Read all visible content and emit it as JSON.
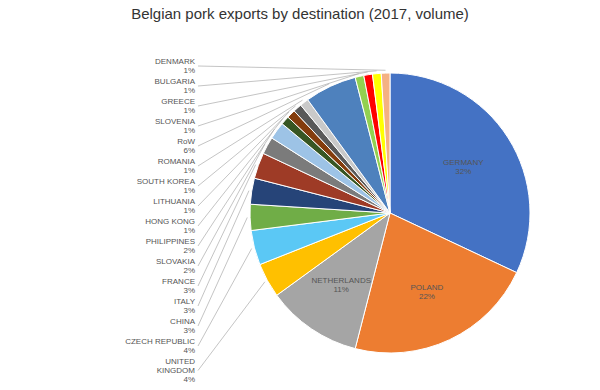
{
  "chart_data": {
    "type": "pie",
    "title": "Belgian pork exports by destination (2017, volume)",
    "categories": [
      "GERMANY",
      "POLAND",
      "NETHERLANDS",
      "UNITED\nKINGDOM",
      "CZECH REPUBLIC",
      "CHINA",
      "ITALY",
      "FRANCE",
      "SLOVAKIA",
      "PHILIPPINES",
      "HONG KONG",
      "LITHUANIA",
      "SOUTH KOREA",
      "ROMANIA",
      "RoW",
      "SLOVENIA",
      "GREECE",
      "BULGARIA",
      "DENMARK"
    ],
    "values": [
      32,
      22,
      11,
      4,
      4,
      3,
      3,
      3,
      2,
      2,
      1,
      1,
      1,
      1,
      6,
      1,
      1,
      1,
      1
    ],
    "value_labels": [
      "32%",
      "22%",
      "11%",
      "4%",
      "4%",
      "3%",
      "3%",
      "3%",
      "2%",
      "2%",
      "1%",
      "1%",
      "1%",
      "1%",
      "6%",
      "1%",
      "1%",
      "1%",
      "1%"
    ],
    "colors": [
      "#4472C4",
      "#ED7D31",
      "#A5A5A5",
      "#FFC000",
      "#5BC8F5",
      "#70AD47",
      "#264478",
      "#9E3B26",
      "#7B7B7B",
      "#9DC3E6",
      "#375623",
      "#843C0C",
      "#595959",
      "#C9C9C9",
      "#4E81BD",
      "#92D050",
      "#FF0000",
      "#FFFF00",
      "#F4B183"
    ]
  }
}
